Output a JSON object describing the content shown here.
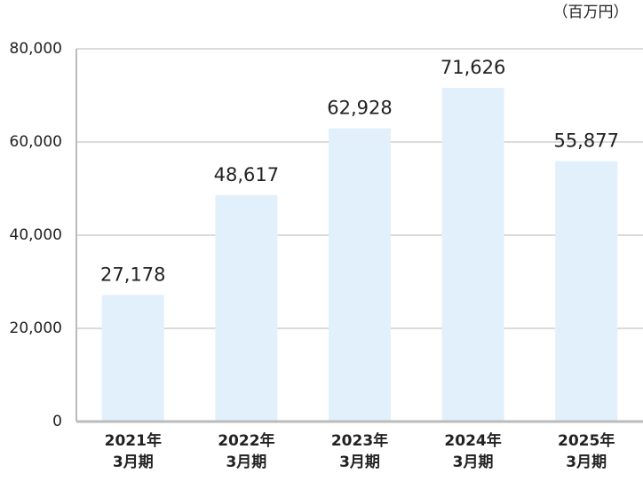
{
  "chart_data": {
    "type": "bar",
    "unit": "（百万円）",
    "categories": [
      "2021年\n3月期",
      "2022年\n3月期",
      "2023年\n3月期",
      "2024年\n3月期",
      "2025年\n3月期"
    ],
    "values": [
      27178,
      48617,
      62928,
      71626,
      55877
    ],
    "value_labels": [
      "27,178",
      "48,617",
      "62,928",
      "71,626",
      "55,877"
    ],
    "color": "#e2f0fb",
    "ylim": [
      0,
      80000
    ],
    "yticks": [
      0,
      {
        "value": 20000,
        "label": "20,000"
      },
      {
        "value": 40000,
        "label": "40,000"
      },
      {
        "value": 60000,
        "label": "60,000"
      },
      {
        "value": 80000,
        "label": "80,000"
      }
    ],
    "grid": true
  }
}
